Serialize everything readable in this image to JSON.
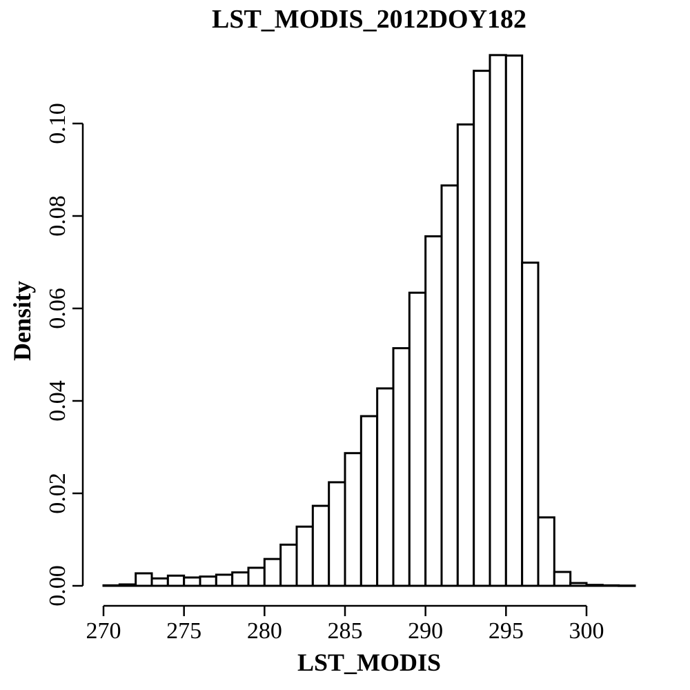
{
  "chart_data": {
    "type": "bar",
    "subtype": "histogram",
    "title": "LST_MODIS_2012DOY182",
    "xlabel": "LST_MODIS",
    "ylabel": "Density",
    "xlim": [
      270,
      303
    ],
    "ylim": [
      0,
      0.11
    ],
    "bin_width": 1,
    "bin_start": 270,
    "values": [
      0.0001,
      0.0003,
      0.0027,
      0.0016,
      0.0022,
      0.0018,
      0.002,
      0.0024,
      0.0029,
      0.0039,
      0.0058,
      0.0089,
      0.0128,
      0.0173,
      0.0224,
      0.0287,
      0.0367,
      0.0427,
      0.0514,
      0.0634,
      0.0756,
      0.0866,
      0.0998,
      0.1114,
      0.1148,
      0.1147,
      0.0699,
      0.0148,
      0.003,
      0.0006,
      0.0002,
      0.0001,
      5e-05
    ],
    "x_ticks": [
      "270",
      "275",
      "280",
      "285",
      "290",
      "295",
      "300"
    ],
    "y_ticks": [
      "0.00",
      "0.02",
      "0.04",
      "0.06",
      "0.08",
      "0.10"
    ],
    "grid": false,
    "bar_fill": "#ffffff",
    "bar_stroke": "#000000"
  }
}
